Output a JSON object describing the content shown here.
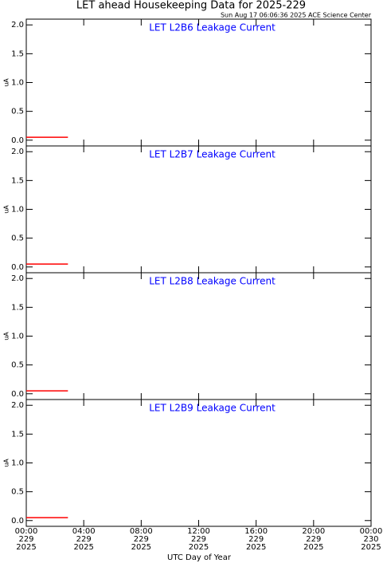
{
  "title": "LET ahead Housekeeping Data for 2025-229",
  "subtitle": "Sun Aug 17 06:06:36 2025 ACE Science Center",
  "x_axis": {
    "label": "UTC Day of Year",
    "xlim": [
      0,
      24
    ],
    "xticks": [
      {
        "value": 0,
        "label": "00:00",
        "day": "229",
        "year": "2025"
      },
      {
        "value": 4,
        "label": "04:00",
        "day": "229",
        "year": "2025"
      },
      {
        "value": 8,
        "label": "08:00",
        "day": "229",
        "year": "2025"
      },
      {
        "value": 12,
        "label": "12:00",
        "day": "229",
        "year": "2025"
      },
      {
        "value": 16,
        "label": "16:00",
        "day": "229",
        "year": "2025"
      },
      {
        "value": 20,
        "label": "20:00",
        "day": "229",
        "year": "2025"
      },
      {
        "value": 24,
        "label": "00:00",
        "day": "230",
        "year": "2025"
      }
    ]
  },
  "chart_data": [
    {
      "type": "line",
      "title": "LET L2B6 Leakage Current",
      "ylabel": "uA",
      "ylim": [
        -0.1,
        2.1
      ],
      "yticks": [
        {
          "value": 0,
          "label": "0.0"
        },
        0.5,
        {
          "value": 1,
          "label": "1.0"
        },
        1.5,
        {
          "value": 2,
          "label": "2.0"
        }
      ],
      "x": [
        0,
        2.9
      ],
      "series": [
        {
          "color": "#ff0000",
          "values": [
            0.05,
            0.05
          ]
        }
      ]
    },
    {
      "type": "line",
      "title": "LET L2B7 Leakage Current",
      "ylabel": "uA",
      "ylim": [
        -0.1,
        2.1
      ],
      "yticks": [
        {
          "value": 0,
          "label": "0.0"
        },
        0.5,
        {
          "value": 1,
          "label": "1.0"
        },
        1.5,
        {
          "value": 2,
          "label": "2.0"
        }
      ],
      "x": [
        0,
        2.9
      ],
      "series": [
        {
          "color": "#ff0000",
          "values": [
            0.05,
            0.05
          ]
        }
      ]
    },
    {
      "type": "line",
      "title": "LET L2B8 Leakage Current",
      "ylabel": "uA",
      "ylim": [
        -0.1,
        2.1
      ],
      "yticks": [
        {
          "value": 0,
          "label": "0.0"
        },
        0.5,
        {
          "value": 1,
          "label": "1.0"
        },
        1.5,
        {
          "value": 2,
          "label": "2.0"
        }
      ],
      "x": [
        0,
        2.9
      ],
      "series": [
        {
          "color": "#ff0000",
          "values": [
            0.05,
            0.05
          ]
        }
      ]
    },
    {
      "type": "line",
      "title": "LET L2B9 Leakage Current",
      "ylabel": "uA",
      "ylim": [
        -0.1,
        2.1
      ],
      "yticks": [
        {
          "value": 0,
          "label": "0.0"
        },
        0.5,
        {
          "value": 1,
          "label": "1.0"
        },
        1.5,
        {
          "value": 2,
          "label": "2.0"
        }
      ],
      "x": [
        0,
        2.9
      ],
      "series": [
        {
          "color": "#ff0000",
          "values": [
            0.05,
            0.05
          ]
        }
      ]
    }
  ]
}
